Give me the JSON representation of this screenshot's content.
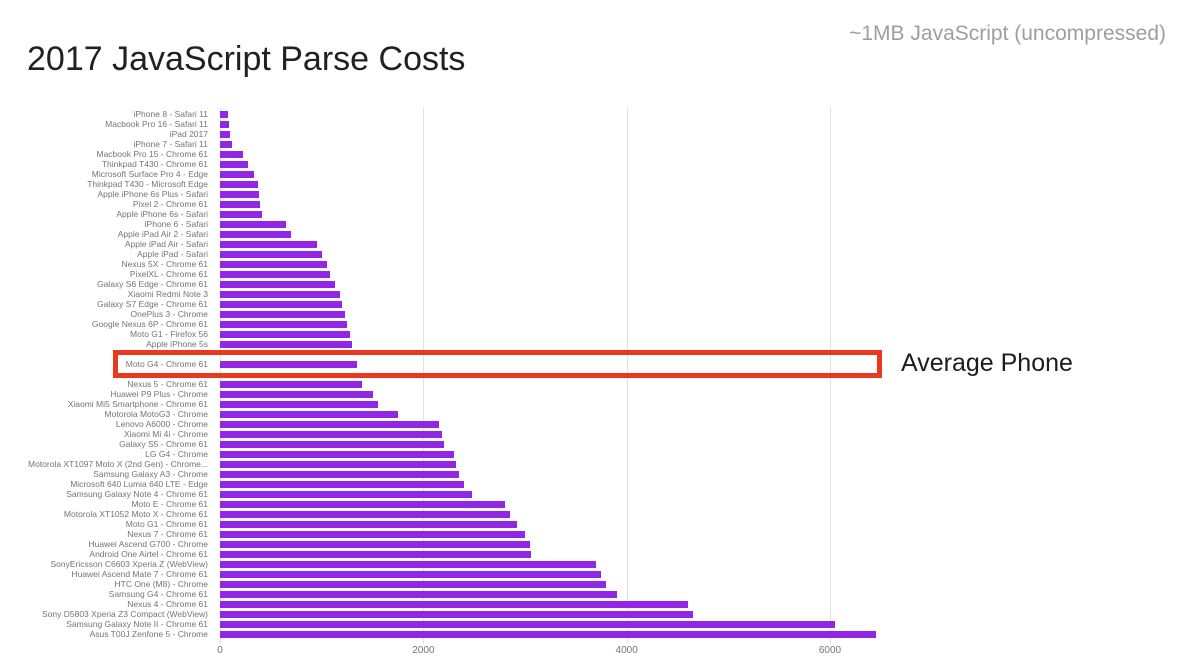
{
  "header": {
    "title": "2017 JavaScript Parse Costs",
    "subtitle": "~1MB JavaScript (uncompressed)"
  },
  "annotation": {
    "label": "Average Phone",
    "box_color": "#e8391f",
    "highlighted_device": "Moto G4 - Chrome 61"
  },
  "chart_data": {
    "type": "bar",
    "orientation": "horizontal",
    "bar_color": "#9326e4",
    "grid_color": "#e2e2e2",
    "x_ticks": [
      0,
      2000,
      4000,
      6000
    ],
    "xlim": [
      0,
      6600
    ],
    "legend": "none",
    "categories": [
      "iPhone 8 - Safari 11",
      "Macbook Pro 16 - Safari 11",
      "iPad 2017",
      "iPhone 7 - Safari 11",
      "Macbook Pro 15 - Chrome 61",
      "Thinkpad T430 - Chrome 61",
      "Microsoft Surface Pro 4 - Edge",
      "Thinkpad T430 - Microsoft Edge",
      "Apple iPhone 6s Plus - Safari",
      "Pixel 2 - Chrome 61",
      "Apple iPhone 6s - Safari",
      "iPhone 6 - Safari",
      "Apple iPad Air 2 - Safari",
      "Apple iPad Air - Safari",
      "Apple iPad - Safari",
      "Nexus 5X - Chrome 61",
      "PixelXL - Chrome 61",
      "Galaxy S6 Edge - Chrome 61",
      "Xiaomi Redmi Note 3",
      "Galaxy S7 Edge - Chrome 61",
      "OnePlus 3 - Chrome",
      "Google Nexus 6P - Chrome 61",
      "Moto G1 - Firefox 56",
      "Apple iPhone 5s",
      "",
      "Moto G4 - Chrome 61",
      "",
      "Nexus 5 - Chrome 61",
      "Huawei P9 Plus - Chrome",
      "Xiaomi Mi5 Smartphone - Chrome 61",
      "Motorola MotoG3 - Chrome",
      "Lenovo A6000 - Chrome",
      "Xiaomi Mi 4i - Chrome",
      "Galaxy S5 - Chrome 61",
      "LG G4 - Chrome",
      "Motorola XT1097 Moto X (2nd Gen) - Chrome...",
      "Samsung Galaxy A3 - Chrome",
      "Microsoft 640 Lumia 640 LTE - Edge",
      "Samsung Galaxy Note 4 - Chrome 61",
      "Moto E - Chrome 61",
      "Motorola XT1052 Moto X - Chrome 61",
      "Moto G1 - Chrome 61",
      "Nexus 7 - Chrome 61",
      "Huawei Ascend G700 - Chrome",
      "Android One Airtel - Chrome 61",
      "SonyEricsson C6603 Xperia Z (WebView)",
      "Huawei Ascend Mate 7 - Chrome 61",
      "HTC One (M8) - Chrome",
      "Samsung G4 - Chrome 61",
      "Nexus 4 - Chrome 61",
      "Sony D5803 Xperia Z3 Compact (WebView)",
      "Samsung Galaxy Note II - Chrome 61",
      "Asus T00J Zenfone 5 - Chrome"
    ],
    "values": [
      80,
      85,
      100,
      120,
      230,
      280,
      330,
      370,
      380,
      395,
      410,
      650,
      700,
      950,
      1000,
      1050,
      1080,
      1130,
      1180,
      1200,
      1230,
      1250,
      1280,
      1300,
      null,
      1350,
      null,
      1400,
      1500,
      1550,
      1750,
      2150,
      2180,
      2200,
      2300,
      2320,
      2350,
      2400,
      2480,
      2800,
      2850,
      2920,
      3000,
      3050,
      3060,
      3700,
      3750,
      3800,
      3900,
      4600,
      4650,
      6050,
      6450
    ]
  }
}
